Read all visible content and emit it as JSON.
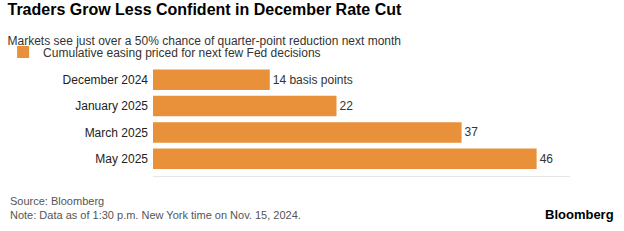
{
  "chart_data": {
    "type": "bar",
    "orientation": "horizontal",
    "title": "Traders Grow Less Confident in December Rate Cut",
    "subtitle": "Markets see just over a 50% chance of quarter-point reduction next month",
    "categories": [
      "December 2024",
      "January 2025",
      "March 2025",
      "May 2025"
    ],
    "series": [
      {
        "name": "Cumulative easing priced for next few Fed decisions",
        "color": "#e8913a",
        "values": [
          14,
          22,
          37,
          46
        ],
        "value_labels": [
          "14 basis points",
          "22",
          "37",
          "46"
        ]
      }
    ],
    "xlim": [
      0,
      50
    ],
    "xticks": [],
    "data_labels": true,
    "tick_labels": "y",
    "grid": false,
    "legend": "top left",
    "annotations": [
      "Source: Bloomberg",
      "Note: Data as of 1:30 p.m. New York time on Nov. 15, 2024.",
      "Bloomberg"
    ]
  }
}
